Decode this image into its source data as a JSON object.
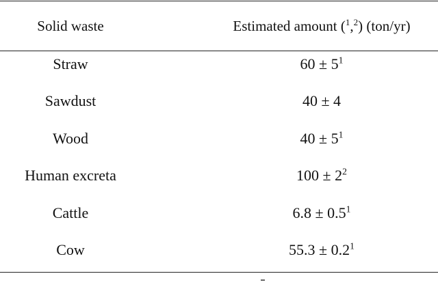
{
  "table": {
    "headers": {
      "col1": "Solid waste",
      "col2_prefix": "Estimated amount (",
      "col2_sup1": "1",
      "col2_comma": ",",
      "col2_sup2": "2",
      "col2_suffix": ") (ton/yr)"
    },
    "rows": [
      {
        "waste": "Straw",
        "amount": "60 ± 5",
        "ref": "1"
      },
      {
        "waste": "Sawdust",
        "amount": "40 ± 4",
        "ref": ""
      },
      {
        "waste": "Wood",
        "amount": "40 ± 5",
        "ref": "1"
      },
      {
        "waste": "Human excreta",
        "amount": "100 ± 2",
        "ref": "2"
      },
      {
        "waste": "Cattle",
        "amount": "6.8 ± 0.5",
        "ref": "1"
      },
      {
        "waste": "Cow",
        "amount": "55.3 ± 0.2",
        "ref": "1"
      }
    ]
  }
}
